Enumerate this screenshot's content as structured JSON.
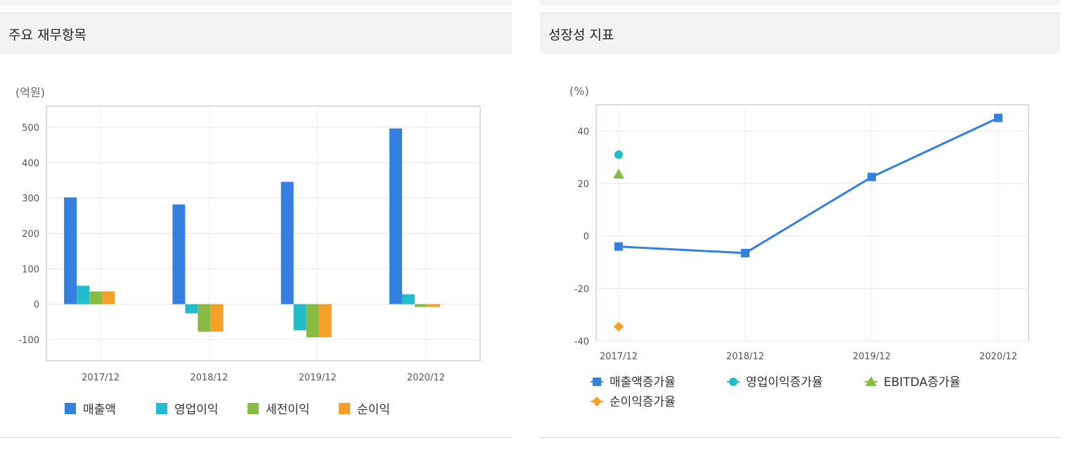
{
  "panels": {
    "left_title": "주요 재무항목",
    "right_title": "성장성 지표"
  },
  "colors": {
    "blue": "#3380dd",
    "teal": "#22bccc",
    "green": "#88bb44",
    "orange": "#f5a02a"
  },
  "chart_data": [
    {
      "type": "bar",
      "unit_label": "(억원)",
      "categories": [
        "2017/12",
        "2018/12",
        "2019/12",
        "2020/12"
      ],
      "series": [
        {
          "name": "매출액",
          "values": [
            302,
            282,
            346,
            497
          ]
        },
        {
          "name": "영업이익",
          "values": [
            52,
            -26,
            -74,
            28
          ]
        },
        {
          "name": "세전이익",
          "values": [
            36,
            -78,
            -94,
            -8
          ]
        },
        {
          "name": "순이익",
          "values": [
            36,
            -78,
            -94,
            -8
          ]
        }
      ],
      "yticks": [
        "500",
        "400",
        "300",
        "200",
        "100",
        "0",
        "-100"
      ],
      "ylim": [
        -160,
        560
      ],
      "grid": true,
      "legend": "bottom"
    },
    {
      "type": "line",
      "unit_label": "(%)",
      "categories": [
        "2017/12",
        "2018/12",
        "2019/12",
        "2020/12"
      ],
      "series": [
        {
          "name": "매출액증가율",
          "values": [
            -4,
            -6.5,
            22.5,
            45
          ],
          "marker": "square"
        },
        {
          "name": "영업이익증가율",
          "values": [
            31,
            null,
            null,
            null
          ],
          "marker": "circle"
        },
        {
          "name": "EBITDA증가율",
          "values": [
            23.5,
            null,
            null,
            null
          ],
          "marker": "triangle"
        },
        {
          "name": "순이익증가율",
          "values": [
            -34.5,
            null,
            null,
            null
          ],
          "marker": "diamond"
        }
      ],
      "yticks": [
        "40",
        "20",
        "0",
        "-20",
        "-40"
      ],
      "ylim": [
        -40,
        50
      ],
      "grid": true,
      "legend": "bottom"
    }
  ]
}
